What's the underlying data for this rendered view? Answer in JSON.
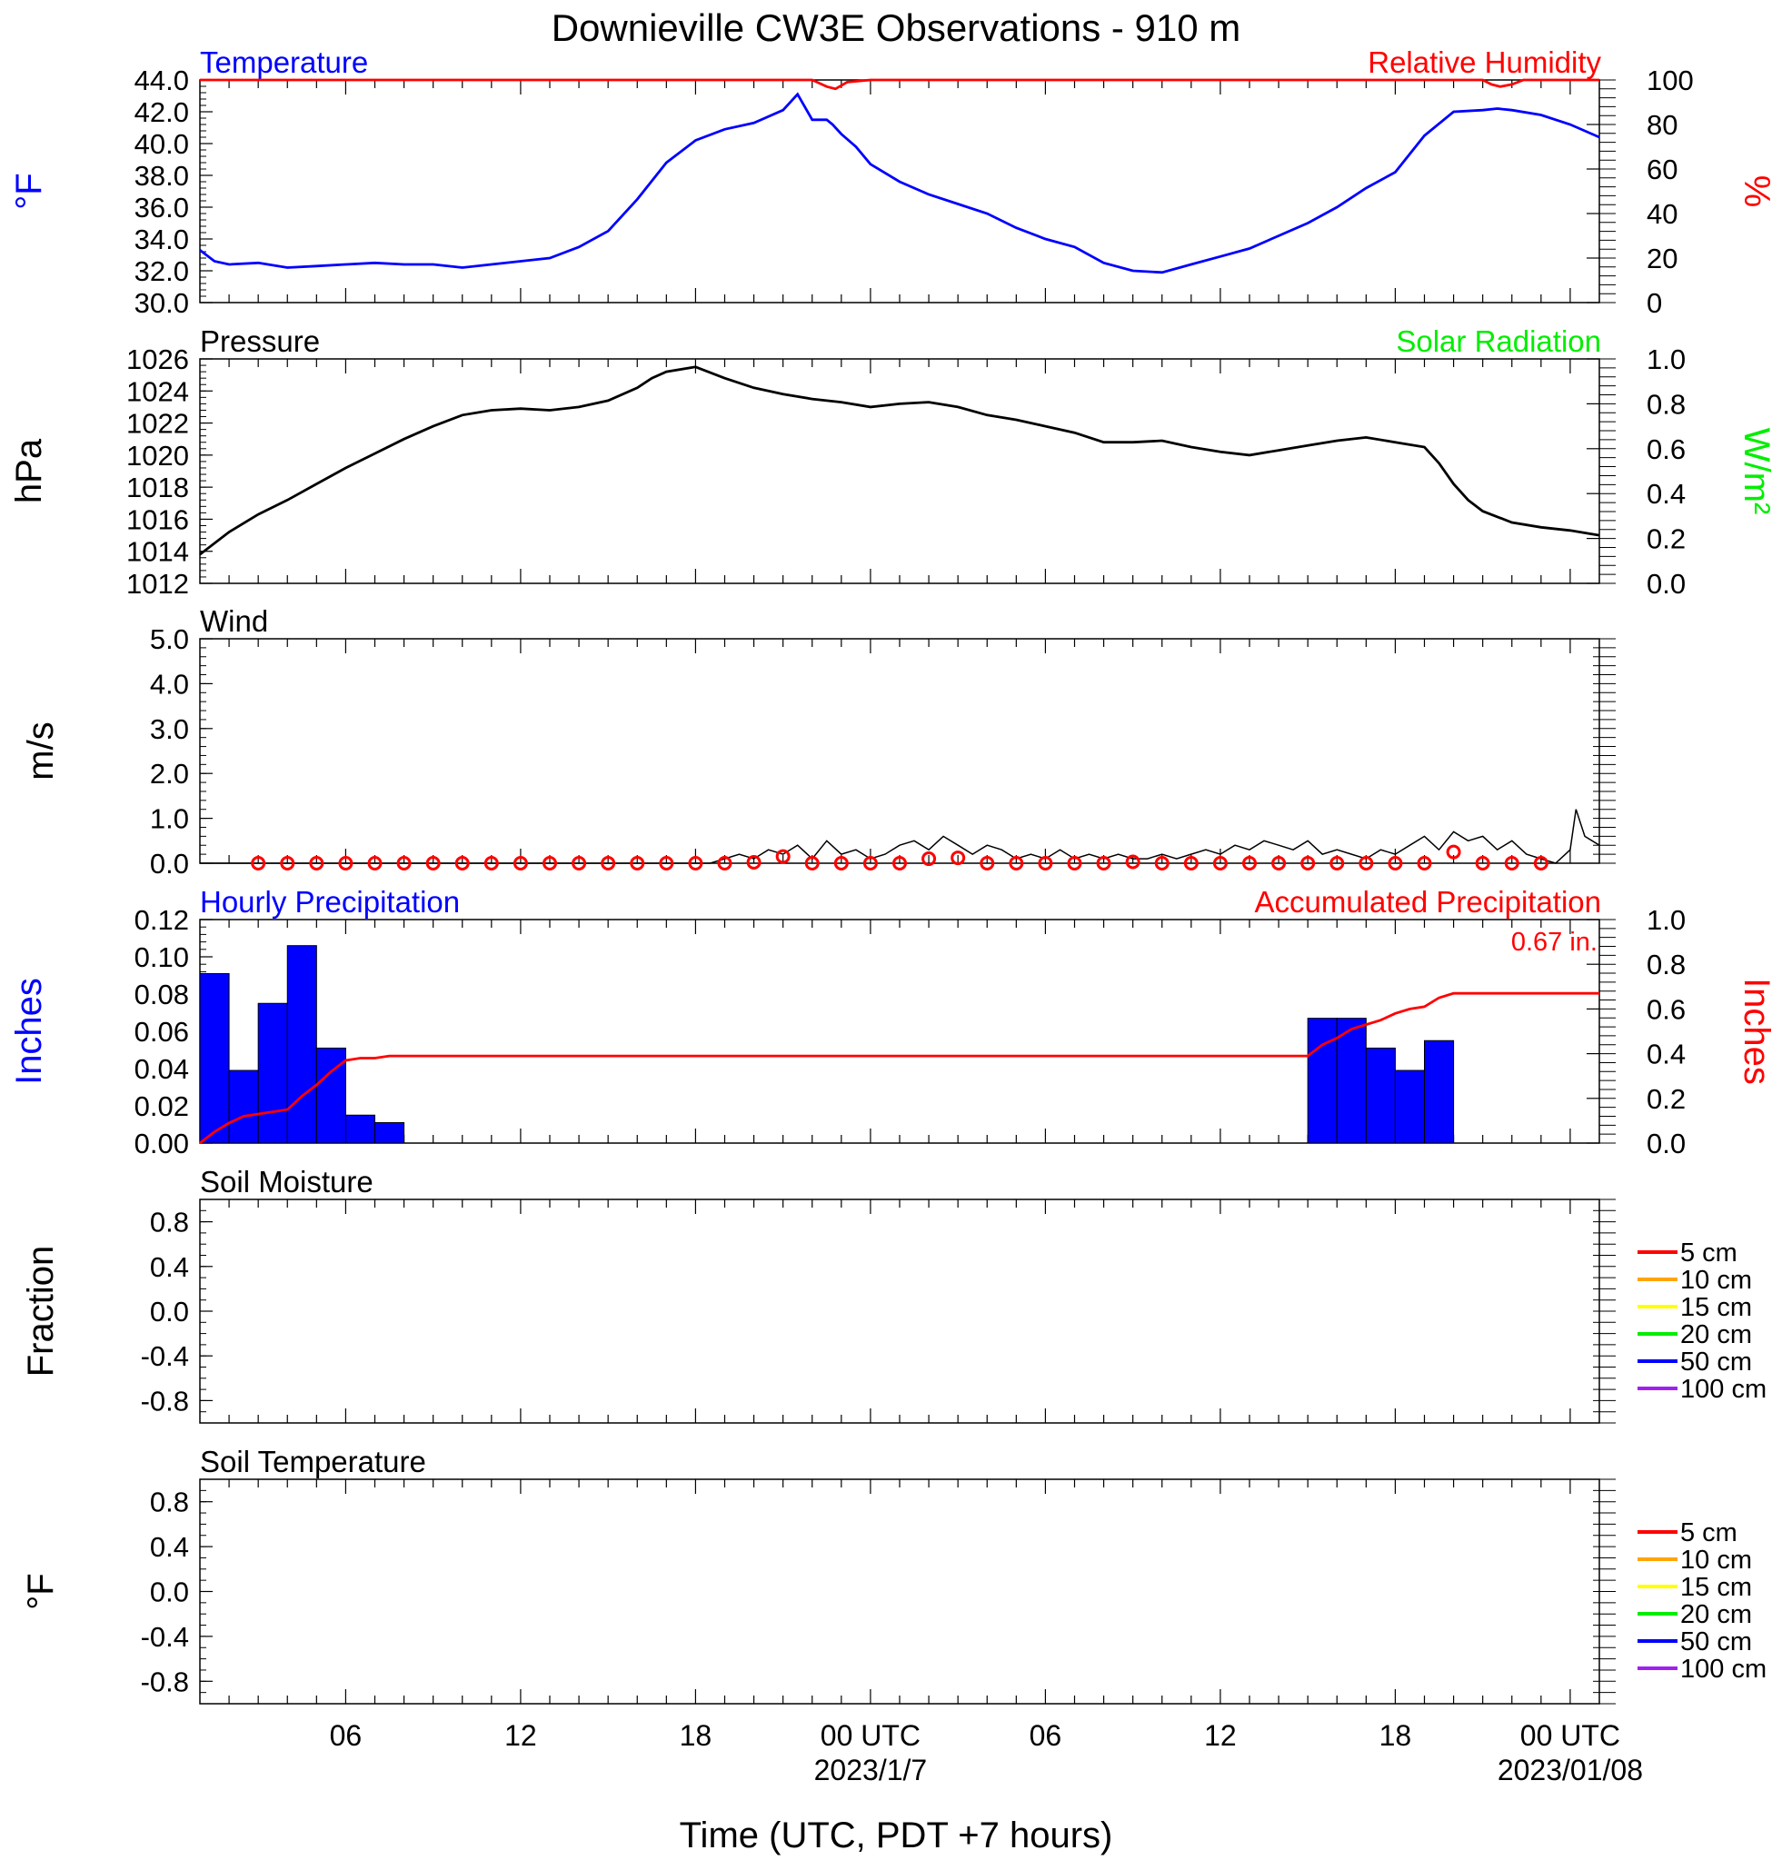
{
  "title": "Downieville CW3E Observations - 910 m",
  "x_axis": {
    "label": "Time (UTC, PDT +7 hours)",
    "range_hours": [
      0,
      48
    ],
    "major_ticks": [
      {
        "hour": 5,
        "label": "06"
      },
      {
        "hour": 11,
        "label": "12"
      },
      {
        "hour": 17,
        "label": "18"
      },
      {
        "hour": 23,
        "label": "00 UTC",
        "sublabel": "2023/1/7"
      },
      {
        "hour": 29,
        "label": "06"
      },
      {
        "hour": 35,
        "label": "12"
      },
      {
        "hour": 41,
        "label": "18"
      },
      {
        "hour": 47,
        "label": "00 UTC",
        "sublabel": "2023/01/08"
      }
    ]
  },
  "colors": {
    "temperature": "#0000ff",
    "humidity": "#ff0000",
    "pressure": "#000000",
    "solar": "#00ee00",
    "wind": "#000000",
    "wind_marker": "#ff0000",
    "hourly_precip": "#0000ff",
    "accum_precip": "#ff0000"
  },
  "chart_data": [
    {
      "type": "line",
      "panel": "temperature",
      "title": "Temperature",
      "title_right": "Relative Humidity",
      "ylabel_left": "°F",
      "ylabel_right": "%",
      "ylim_left": [
        30,
        44
      ],
      "ylim_right": [
        0,
        100
      ],
      "yticks_left": [
        "30.0",
        "32.0",
        "34.0",
        "36.0",
        "38.0",
        "40.0",
        "42.0",
        "44.0"
      ],
      "yticks_right": [
        "0",
        "20",
        "40",
        "60",
        "80",
        "100"
      ],
      "series": [
        {
          "axis": "left",
          "color": "temperature",
          "x": [
            0,
            0.5,
            1,
            2,
            3,
            4,
            5,
            6,
            7,
            8,
            9,
            10,
            11,
            12,
            13,
            14,
            15,
            16,
            17,
            18,
            19,
            20,
            20.5,
            21,
            21.5,
            21.7,
            22,
            22.5,
            23,
            24,
            25,
            26,
            27,
            28,
            29,
            30,
            31,
            32,
            33,
            34,
            35,
            36,
            37,
            38,
            39,
            40,
            41,
            42,
            43,
            44,
            44.5,
            45,
            46,
            47,
            48
          ],
          "y": [
            33.3,
            32.6,
            32.4,
            32.5,
            32.2,
            32.3,
            32.4,
            32.5,
            32.4,
            32.4,
            32.2,
            32.4,
            32.6,
            32.8,
            33.5,
            34.5,
            36.5,
            38.8,
            40.2,
            40.9,
            41.3,
            42.1,
            43.1,
            41.5,
            41.5,
            41.2,
            40.6,
            39.8,
            38.7,
            37.6,
            36.8,
            36.2,
            35.6,
            34.7,
            34.0,
            33.5,
            32.5,
            32.0,
            31.9,
            32.4,
            32.9,
            33.4,
            34.2,
            35.0,
            36.0,
            37.2,
            38.2,
            40.5,
            42.0,
            42.1,
            42.2,
            42.1,
            41.8,
            41.2,
            40.4
          ]
        },
        {
          "axis": "right",
          "color": "humidity",
          "x": [
            0,
            21,
            21.5,
            21.8,
            22.2,
            23,
            44,
            44.3,
            44.6,
            45,
            45.4,
            48
          ],
          "y": [
            100,
            100,
            97,
            96,
            99,
            100,
            100,
            98,
            97,
            98,
            100,
            100
          ]
        }
      ]
    },
    {
      "type": "line",
      "panel": "pressure",
      "title": "Pressure",
      "title_right": "Solar Radiation",
      "ylabel_left": "hPa",
      "ylabel_right": "W/m²",
      "ylim_left": [
        1012,
        1026
      ],
      "ylim_right": [
        0,
        1
      ],
      "yticks_left": [
        "1012",
        "1014",
        "1016",
        "1018",
        "1020",
        "1022",
        "1024",
        "1026"
      ],
      "yticks_right": [
        "0.0",
        "0.2",
        "0.4",
        "0.6",
        "0.8",
        "1.0"
      ],
      "series": [
        {
          "axis": "left",
          "color": "pressure",
          "x": [
            0,
            1,
            2,
            3,
            4,
            5,
            6,
            7,
            8,
            9,
            10,
            11,
            12,
            13,
            14,
            15,
            15.5,
            16,
            17,
            18,
            19,
            20,
            21,
            22,
            23,
            24,
            25,
            26,
            27,
            28,
            29,
            30,
            31,
            32,
            33,
            34,
            35,
            36,
            37,
            38,
            39,
            40,
            41,
            42,
            42.5,
            43,
            43.5,
            44,
            45,
            46,
            47,
            48
          ],
          "y": [
            1013.8,
            1015.2,
            1016.3,
            1017.2,
            1018.2,
            1019.2,
            1020.1,
            1021.0,
            1021.8,
            1022.5,
            1022.8,
            1022.9,
            1022.8,
            1023.0,
            1023.4,
            1024.2,
            1024.8,
            1025.2,
            1025.5,
            1024.8,
            1024.2,
            1023.8,
            1023.5,
            1023.3,
            1023.0,
            1023.2,
            1023.3,
            1023.0,
            1022.5,
            1022.2,
            1021.8,
            1021.4,
            1020.8,
            1020.8,
            1020.9,
            1020.5,
            1020.2,
            1020.0,
            1020.3,
            1020.6,
            1020.9,
            1021.1,
            1020.8,
            1020.5,
            1019.5,
            1018.2,
            1017.2,
            1016.5,
            1015.8,
            1015.5,
            1015.3,
            1015.0
          ]
        }
      ]
    },
    {
      "type": "line",
      "panel": "wind",
      "title": "Wind",
      "ylabel_left": "m/s",
      "ylim_left": [
        0,
        5
      ],
      "yticks_left": [
        "0.0",
        "1.0",
        "2.0",
        "3.0",
        "4.0",
        "5.0"
      ],
      "series": [
        {
          "axis": "left",
          "color": "wind",
          "x": [
            0,
            17.5,
            18,
            18.5,
            19,
            19.5,
            20,
            20.5,
            21,
            21.5,
            22,
            22.5,
            23,
            23.5,
            24,
            24.5,
            25,
            25.5,
            26,
            26.5,
            27,
            27.5,
            28,
            28.5,
            29,
            29.5,
            30,
            30.5,
            31,
            31.5,
            32,
            32.5,
            33,
            33.5,
            34,
            34.5,
            35,
            35.5,
            36,
            36.5,
            37,
            37.5,
            38,
            38.5,
            39,
            39.5,
            40,
            40.5,
            41,
            41.5,
            42,
            42.5,
            43,
            43.5,
            44,
            44.5,
            45,
            45.5,
            46,
            46.5,
            47,
            47.2,
            47.5,
            48
          ],
          "y": [
            0,
            0,
            0.1,
            0.2,
            0.1,
            0.3,
            0.2,
            0.4,
            0.1,
            0.5,
            0.2,
            0.3,
            0.1,
            0.2,
            0.4,
            0.5,
            0.3,
            0.6,
            0.4,
            0.2,
            0.4,
            0.3,
            0.1,
            0.2,
            0.1,
            0.3,
            0.1,
            0.2,
            0.1,
            0.2,
            0.1,
            0.1,
            0.2,
            0.1,
            0.2,
            0.3,
            0.2,
            0.4,
            0.3,
            0.5,
            0.4,
            0.3,
            0.5,
            0.2,
            0.3,
            0.2,
            0.1,
            0.3,
            0.2,
            0.4,
            0.6,
            0.3,
            0.7,
            0.5,
            0.6,
            0.3,
            0.5,
            0.2,
            0.1,
            0,
            0.3,
            1.2,
            0.6,
            0.4
          ]
        },
        {
          "axis": "left",
          "color": "wind_marker",
          "style": "circles",
          "x": [
            2,
            3,
            4,
            5,
            6,
            7,
            8,
            9,
            10,
            11,
            12,
            13,
            14,
            15,
            16,
            17,
            18,
            19,
            20,
            21,
            22,
            23,
            24,
            25,
            26,
            27,
            28,
            29,
            30,
            31,
            32,
            33,
            34,
            35,
            36,
            37,
            38,
            39,
            40,
            41,
            42,
            43,
            44,
            45,
            46
          ],
          "y": [
            0,
            0,
            0,
            0,
            0,
            0,
            0,
            0,
            0,
            0,
            0,
            0,
            0,
            0,
            0,
            0,
            0,
            0.02,
            0.15,
            0,
            0,
            0,
            0,
            0.1,
            0.12,
            0,
            0,
            0,
            0,
            0,
            0.03,
            0,
            0,
            0,
            0,
            0,
            0,
            0,
            0,
            0,
            0,
            0.25,
            0,
            0,
            0
          ]
        }
      ]
    },
    {
      "type": "bar",
      "panel": "precipitation",
      "title": "Hourly Precipitation",
      "title_right": "Accumulated Precipitation",
      "annotation": "0.67 in.",
      "ylabel_left": "Inches",
      "ylabel_right": "Inches",
      "ylim_left": [
        0,
        0.12
      ],
      "ylim_right": [
        0,
        1
      ],
      "yticks_left": [
        "0.00",
        "0.02",
        "0.04",
        "0.06",
        "0.08",
        "0.10",
        "0.12"
      ],
      "yticks_right": [
        "0.0",
        "0.2",
        "0.4",
        "0.6",
        "0.8",
        "1.0"
      ],
      "bars": {
        "x_start": [
          0,
          1,
          2,
          3,
          4,
          5,
          6,
          38,
          39,
          40,
          41,
          42
        ],
        "values": [
          0.091,
          0.039,
          0.075,
          0.106,
          0.051,
          0.015,
          0.011,
          0.067,
          0.067,
          0.051,
          0.039,
          0.055
        ]
      },
      "series": [
        {
          "axis": "right",
          "color": "accum_precip",
          "x": [
            0,
            0.5,
            1,
            1.5,
            2,
            2.5,
            3,
            3.5,
            4,
            4.5,
            5,
            5.5,
            6,
            6.5,
            7,
            38,
            38.5,
            39,
            39.5,
            40,
            40.5,
            41,
            41.5,
            42,
            42.5,
            43,
            48
          ],
          "y": [
            0,
            0.05,
            0.09,
            0.12,
            0.13,
            0.14,
            0.15,
            0.21,
            0.26,
            0.32,
            0.37,
            0.38,
            0.38,
            0.39,
            0.39,
            0.39,
            0.44,
            0.47,
            0.51,
            0.53,
            0.55,
            0.58,
            0.6,
            0.61,
            0.65,
            0.67,
            0.67
          ]
        }
      ]
    },
    {
      "type": "line",
      "panel": "soil_moisture",
      "title": "Soil Moisture",
      "ylabel_left": "Fraction",
      "ylim_left": [
        -1.0,
        1.0
      ],
      "yticks_left": [
        "-0.8",
        "-0.4",
        "0.0",
        "0.4",
        "0.8"
      ],
      "legend": [
        {
          "label": "5 cm",
          "color": "#ff0000"
        },
        {
          "label": "10 cm",
          "color": "#ffa500"
        },
        {
          "label": "15 cm",
          "color": "#ffff00"
        },
        {
          "label": "20 cm",
          "color": "#00ee00"
        },
        {
          "label": "50 cm",
          "color": "#0000ff"
        },
        {
          "label": "100 cm",
          "color": "#a020f0"
        }
      ]
    },
    {
      "type": "line",
      "panel": "soil_temperature",
      "title": "Soil Temperature",
      "ylabel_left": "°F",
      "ylim_left": [
        -1.0,
        1.0
      ],
      "yticks_left": [
        "-0.8",
        "-0.4",
        "0.0",
        "0.4",
        "0.8"
      ],
      "legend": [
        {
          "label": "5 cm",
          "color": "#ff0000"
        },
        {
          "label": "10 cm",
          "color": "#ffa500"
        },
        {
          "label": "15 cm",
          "color": "#ffff00"
        },
        {
          "label": "20 cm",
          "color": "#00ee00"
        },
        {
          "label": "50 cm",
          "color": "#0000ff"
        },
        {
          "label": "100 cm",
          "color": "#a020f0"
        }
      ]
    }
  ]
}
